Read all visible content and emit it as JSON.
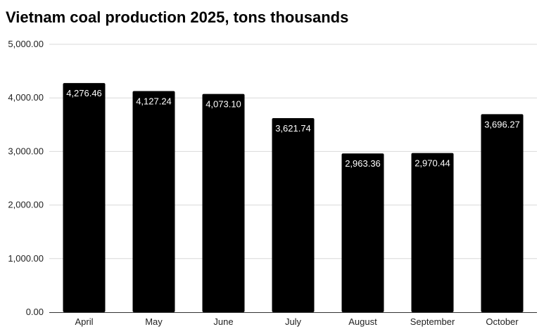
{
  "chart_data": {
    "type": "bar",
    "title": "Vietnam coal production 2025, tons thousands",
    "categories": [
      "April",
      "May",
      "June",
      "July",
      "August",
      "September",
      "October"
    ],
    "values": [
      4276.46,
      4127.24,
      4073.1,
      3621.74,
      2963.36,
      2970.44,
      3696.27
    ],
    "data_labels": [
      "4,276.46",
      "4,127.24",
      "4,073.10",
      "3,621.74",
      "2,963.36",
      "2,970.44",
      "3,696.27"
    ],
    "yticks": [
      0,
      1000,
      2000,
      3000,
      4000,
      5000
    ],
    "ytick_labels": [
      "0.00",
      "1,000.00",
      "2,000.00",
      "3,000.00",
      "4,000.00",
      "5,000.00"
    ],
    "ylim": [
      0,
      5000
    ],
    "xlabel": "",
    "ylabel": "",
    "grid": true,
    "legend": "none",
    "bar_color": "#000000",
    "grid_color": "#d9d9d9",
    "label_color": "#ffffff"
  }
}
